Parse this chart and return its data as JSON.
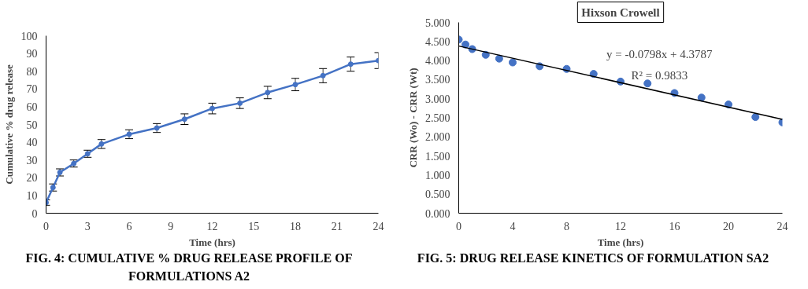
{
  "chart_data": [
    {
      "type": "line",
      "xlabel": "Time (hrs)",
      "ylabel": "Cumulative % drug release",
      "x": [
        0,
        0.5,
        1,
        2,
        3,
        4,
        6,
        8,
        10,
        12,
        14,
        16,
        18,
        20,
        22,
        24
      ],
      "series": [
        {
          "color": "#4472c4",
          "values": [
            6,
            14.5,
            23,
            28,
            33.5,
            39,
            44.5,
            48,
            53,
            59,
            62,
            68,
            72.5,
            77.5,
            84,
            86
          ],
          "errors": [
            1.5,
            2,
            2,
            2,
            2,
            2.5,
            2.5,
            2.5,
            3,
            3,
            3,
            3.5,
            3.5,
            4,
            4,
            4.5
          ]
        }
      ],
      "xlim": [
        0,
        24
      ],
      "xticks": [
        0,
        3,
        6,
        9,
        12,
        15,
        18,
        21,
        24
      ],
      "ylim": [
        0,
        100
      ],
      "yticks": [
        0,
        10,
        20,
        30,
        40,
        50,
        60,
        70,
        80,
        90,
        100
      ],
      "grid": false,
      "marker": "circle",
      "line_style": "solid",
      "annotations": [
        "FIG. 4: CUMULATIVE % DRUG RELEASE PROFILE OF FORMULATIONS A2"
      ]
    },
    {
      "type": "scatter",
      "title": "Hixson Crowell",
      "xlabel": "Time (hrs)",
      "ylabel": "CRR (Wo) - CRR (Wt)",
      "x": [
        0,
        0.5,
        1,
        2,
        3,
        4,
        6,
        8,
        10,
        12,
        14,
        16,
        18,
        20,
        22,
        24
      ],
      "series": [
        {
          "color": "#4472c4",
          "values": [
            4.55,
            4.42,
            4.3,
            4.15,
            4.05,
            3.95,
            3.85,
            3.78,
            3.65,
            3.45,
            3.4,
            3.15,
            3.03,
            2.85,
            2.52,
            2.38
          ]
        },
        {
          "type": "line",
          "color": "#000000",
          "marker": "none",
          "x": [
            0,
            24
          ],
          "values": [
            4.38,
            2.46
          ]
        }
      ],
      "xlim": [
        0,
        24
      ],
      "xticks": [
        0,
        4,
        8,
        12,
        16,
        20,
        24
      ],
      "ylim": [
        0,
        5
      ],
      "yticks": [
        {
          "value": 0,
          "label": "0.000"
        },
        {
          "value": 0.5,
          "label": "0.500"
        },
        {
          "value": 1,
          "label": "1.000"
        },
        {
          "value": 1.5,
          "label": "1.500"
        },
        {
          "value": 2,
          "label": "2.000"
        },
        {
          "value": 2.5,
          "label": "2.500"
        },
        {
          "value": 3,
          "label": "3.000"
        },
        {
          "value": 3.5,
          "label": "3.500"
        },
        {
          "value": 4,
          "label": "4.000"
        },
        {
          "value": 4.5,
          "label": "4.500"
        },
        {
          "value": 5,
          "label": "5.000"
        }
      ],
      "grid": false,
      "marker": "circle",
      "annotations": [
        "y = -0.0798x + 4.3787",
        "R² = 0.9833",
        "FIG. 5: DRUG RELEASE KINETICS OF FORMULATION SA2"
      ]
    }
  ]
}
